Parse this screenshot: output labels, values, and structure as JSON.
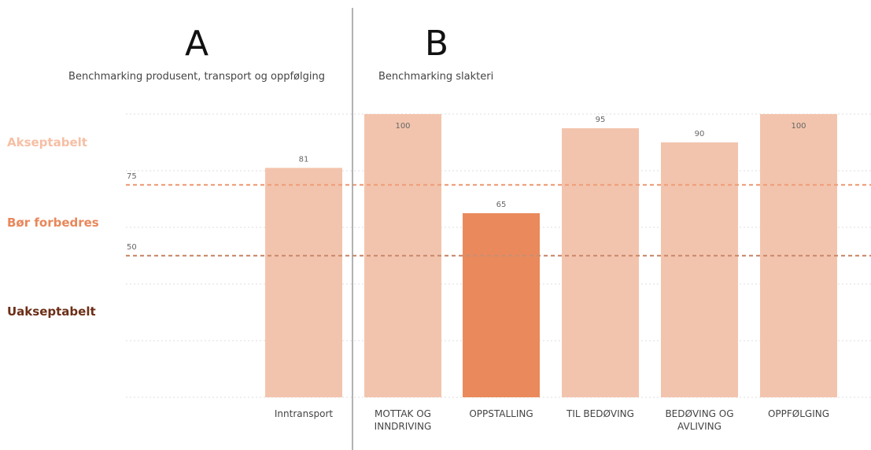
{
  "sections": [
    {
      "letter": "A",
      "subtitle": "Benchmarking produsent, transport og oppfølging"
    },
    {
      "letter": "B",
      "subtitle": "Benchmarking slakteri"
    }
  ],
  "zones": [
    {
      "label": "Akseptabelt",
      "color": "#F6BFA4"
    },
    {
      "label": "Bør forbedres",
      "color": "#E8875A"
    },
    {
      "label": "Uakseptabelt",
      "color": "#6B2E17"
    }
  ],
  "colors": {
    "bar": "#F3C4AD",
    "bar_highlight": "#EA8A5C",
    "gridline": "#DDDDDD",
    "ref75": "#EEA17E",
    "ref50": "#CC8E72",
    "divider": "#999999"
  },
  "chart_data": {
    "type": "bar",
    "categories": [
      "Inntransport",
      "MOTTAK OG INNDRIVING",
      "OPPSTALLING",
      "TIL BEDØVING",
      "BEDØVING OG AVLIVING",
      "OPPFØLGING"
    ],
    "category_lines": [
      [
        "Inntransport"
      ],
      [
        "MOTTAK OG",
        "INNDRIVING"
      ],
      [
        "OPPSTALLING"
      ],
      [
        "TIL BEDØVING"
      ],
      [
        "BEDØVING OG",
        "AVLIVING"
      ],
      [
        "OPPFØLGING"
      ]
    ],
    "values": [
      81,
      100,
      65,
      95,
      90,
      100
    ],
    "data_labels": [
      "81",
      "100",
      "65",
      "95",
      "90",
      "100"
    ],
    "highlight_index": 2,
    "sections": [
      "A",
      "B",
      "B",
      "B",
      "B",
      "B"
    ],
    "reference_lines": [
      {
        "value": 75,
        "label": "75"
      },
      {
        "value": 50,
        "label": "50"
      }
    ],
    "ylim": [
      0,
      100
    ],
    "grid": true,
    "title": "",
    "xlabel": "",
    "ylabel": ""
  }
}
